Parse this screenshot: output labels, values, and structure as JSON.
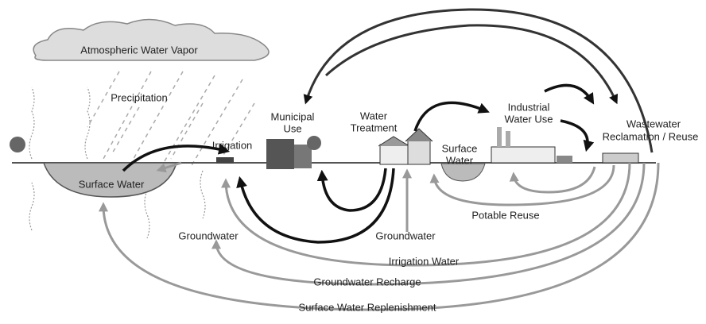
{
  "labels": {
    "atmosphere": "Atmospheric Water Vapor",
    "precipitation": "Precipitation",
    "surface_water_left": "Surface Water",
    "irrigation": "Irrigation",
    "municipal_use": [
      "Municipal",
      "Use"
    ],
    "water_treatment": [
      "Water",
      "Treatment"
    ],
    "surface_water_right": [
      "Surface",
      "Water"
    ],
    "industrial_water_use": [
      "Industrial",
      "Water Use"
    ],
    "wastewater": [
      "Wastewater",
      "Reclamation / Reuse"
    ],
    "groundwater_left": "Groundwater",
    "groundwater_center": "Groundwater",
    "potable_reuse": "Potable Reuse",
    "irrigation_water": "Irrigation Water",
    "groundwater_recharge": "Groundwater Recharge",
    "surface_water_replenishment": "Surface Water Replenishment"
  }
}
